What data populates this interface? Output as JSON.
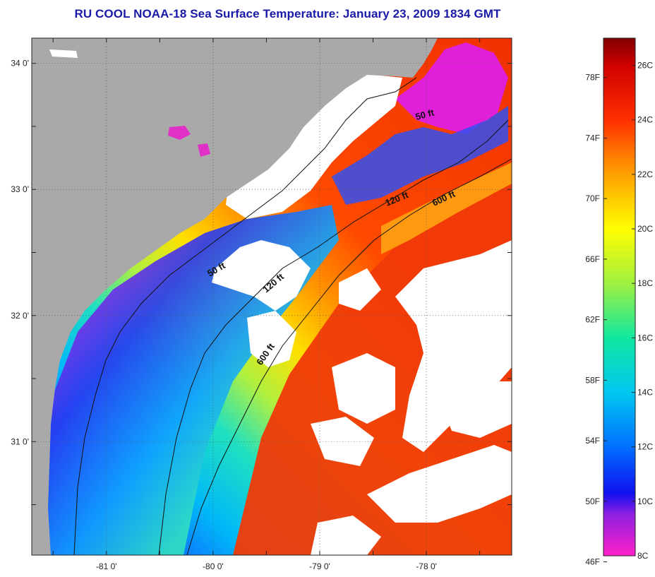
{
  "title": "RU COOL  NOAA-18  Sea Surface Temperature:  January 23, 2009 1834 GMT",
  "map": {
    "lon_range": [
      -81.7,
      -77.2
    ],
    "lat_range": [
      30.1,
      34.2
    ],
    "lat_ticks": [
      {
        "value": 34,
        "label": "34 0'"
      },
      {
        "value": 33,
        "label": "33 0'"
      },
      {
        "value": 32,
        "label": "32 0'"
      },
      {
        "value": 31,
        "label": "31 0'"
      }
    ],
    "lon_ticks": [
      {
        "value": -81,
        "label": "-81 0'"
      },
      {
        "value": -80,
        "label": "-80 0'"
      },
      {
        "value": -79,
        "label": "-79 0'"
      },
      {
        "value": -78,
        "label": "-78 0'"
      }
    ],
    "contour_labels": [
      {
        "name": "contour-label-50ft-north",
        "text": "50 ft"
      },
      {
        "name": "contour-label-120ft-north",
        "text": "120 ft"
      },
      {
        "name": "contour-label-600ft-north",
        "text": "600 ft"
      },
      {
        "name": "contour-label-50ft-south",
        "text": "50 ft"
      },
      {
        "name": "contour-label-120ft-south",
        "text": "120 ft"
      },
      {
        "name": "contour-label-600ft-south",
        "text": "600 ft"
      }
    ],
    "colors": {
      "land": "#a9a9a9",
      "no_data": "#ffffff",
      "grid": "#555555",
      "gulf_stream": "#f04010"
    }
  },
  "colorbar": {
    "fahrenheit_labels": [
      "78F",
      "74F",
      "70F",
      "66F",
      "62F",
      "58F",
      "54F",
      "50F",
      "46F"
    ],
    "celsius_labels": [
      "26C",
      "24C",
      "22C",
      "20C",
      "18C",
      "16C",
      "14C",
      "12C",
      "10C",
      "8C"
    ],
    "range_c": [
      8,
      27
    ],
    "stops": [
      {
        "c": 8,
        "color": "#ff20c8"
      },
      {
        "c": 9.5,
        "color": "#9020e0"
      },
      {
        "c": 10.3,
        "color": "#1010f0"
      },
      {
        "c": 12,
        "color": "#0070ff"
      },
      {
        "c": 14,
        "color": "#00c8f0"
      },
      {
        "c": 16,
        "color": "#10e8a0"
      },
      {
        "c": 18,
        "color": "#a0f040"
      },
      {
        "c": 20,
        "color": "#ffff00"
      },
      {
        "c": 22,
        "color": "#ffa000"
      },
      {
        "c": 24,
        "color": "#ff3000"
      },
      {
        "c": 26,
        "color": "#d00000"
      },
      {
        "c": 27,
        "color": "#800000"
      }
    ]
  }
}
